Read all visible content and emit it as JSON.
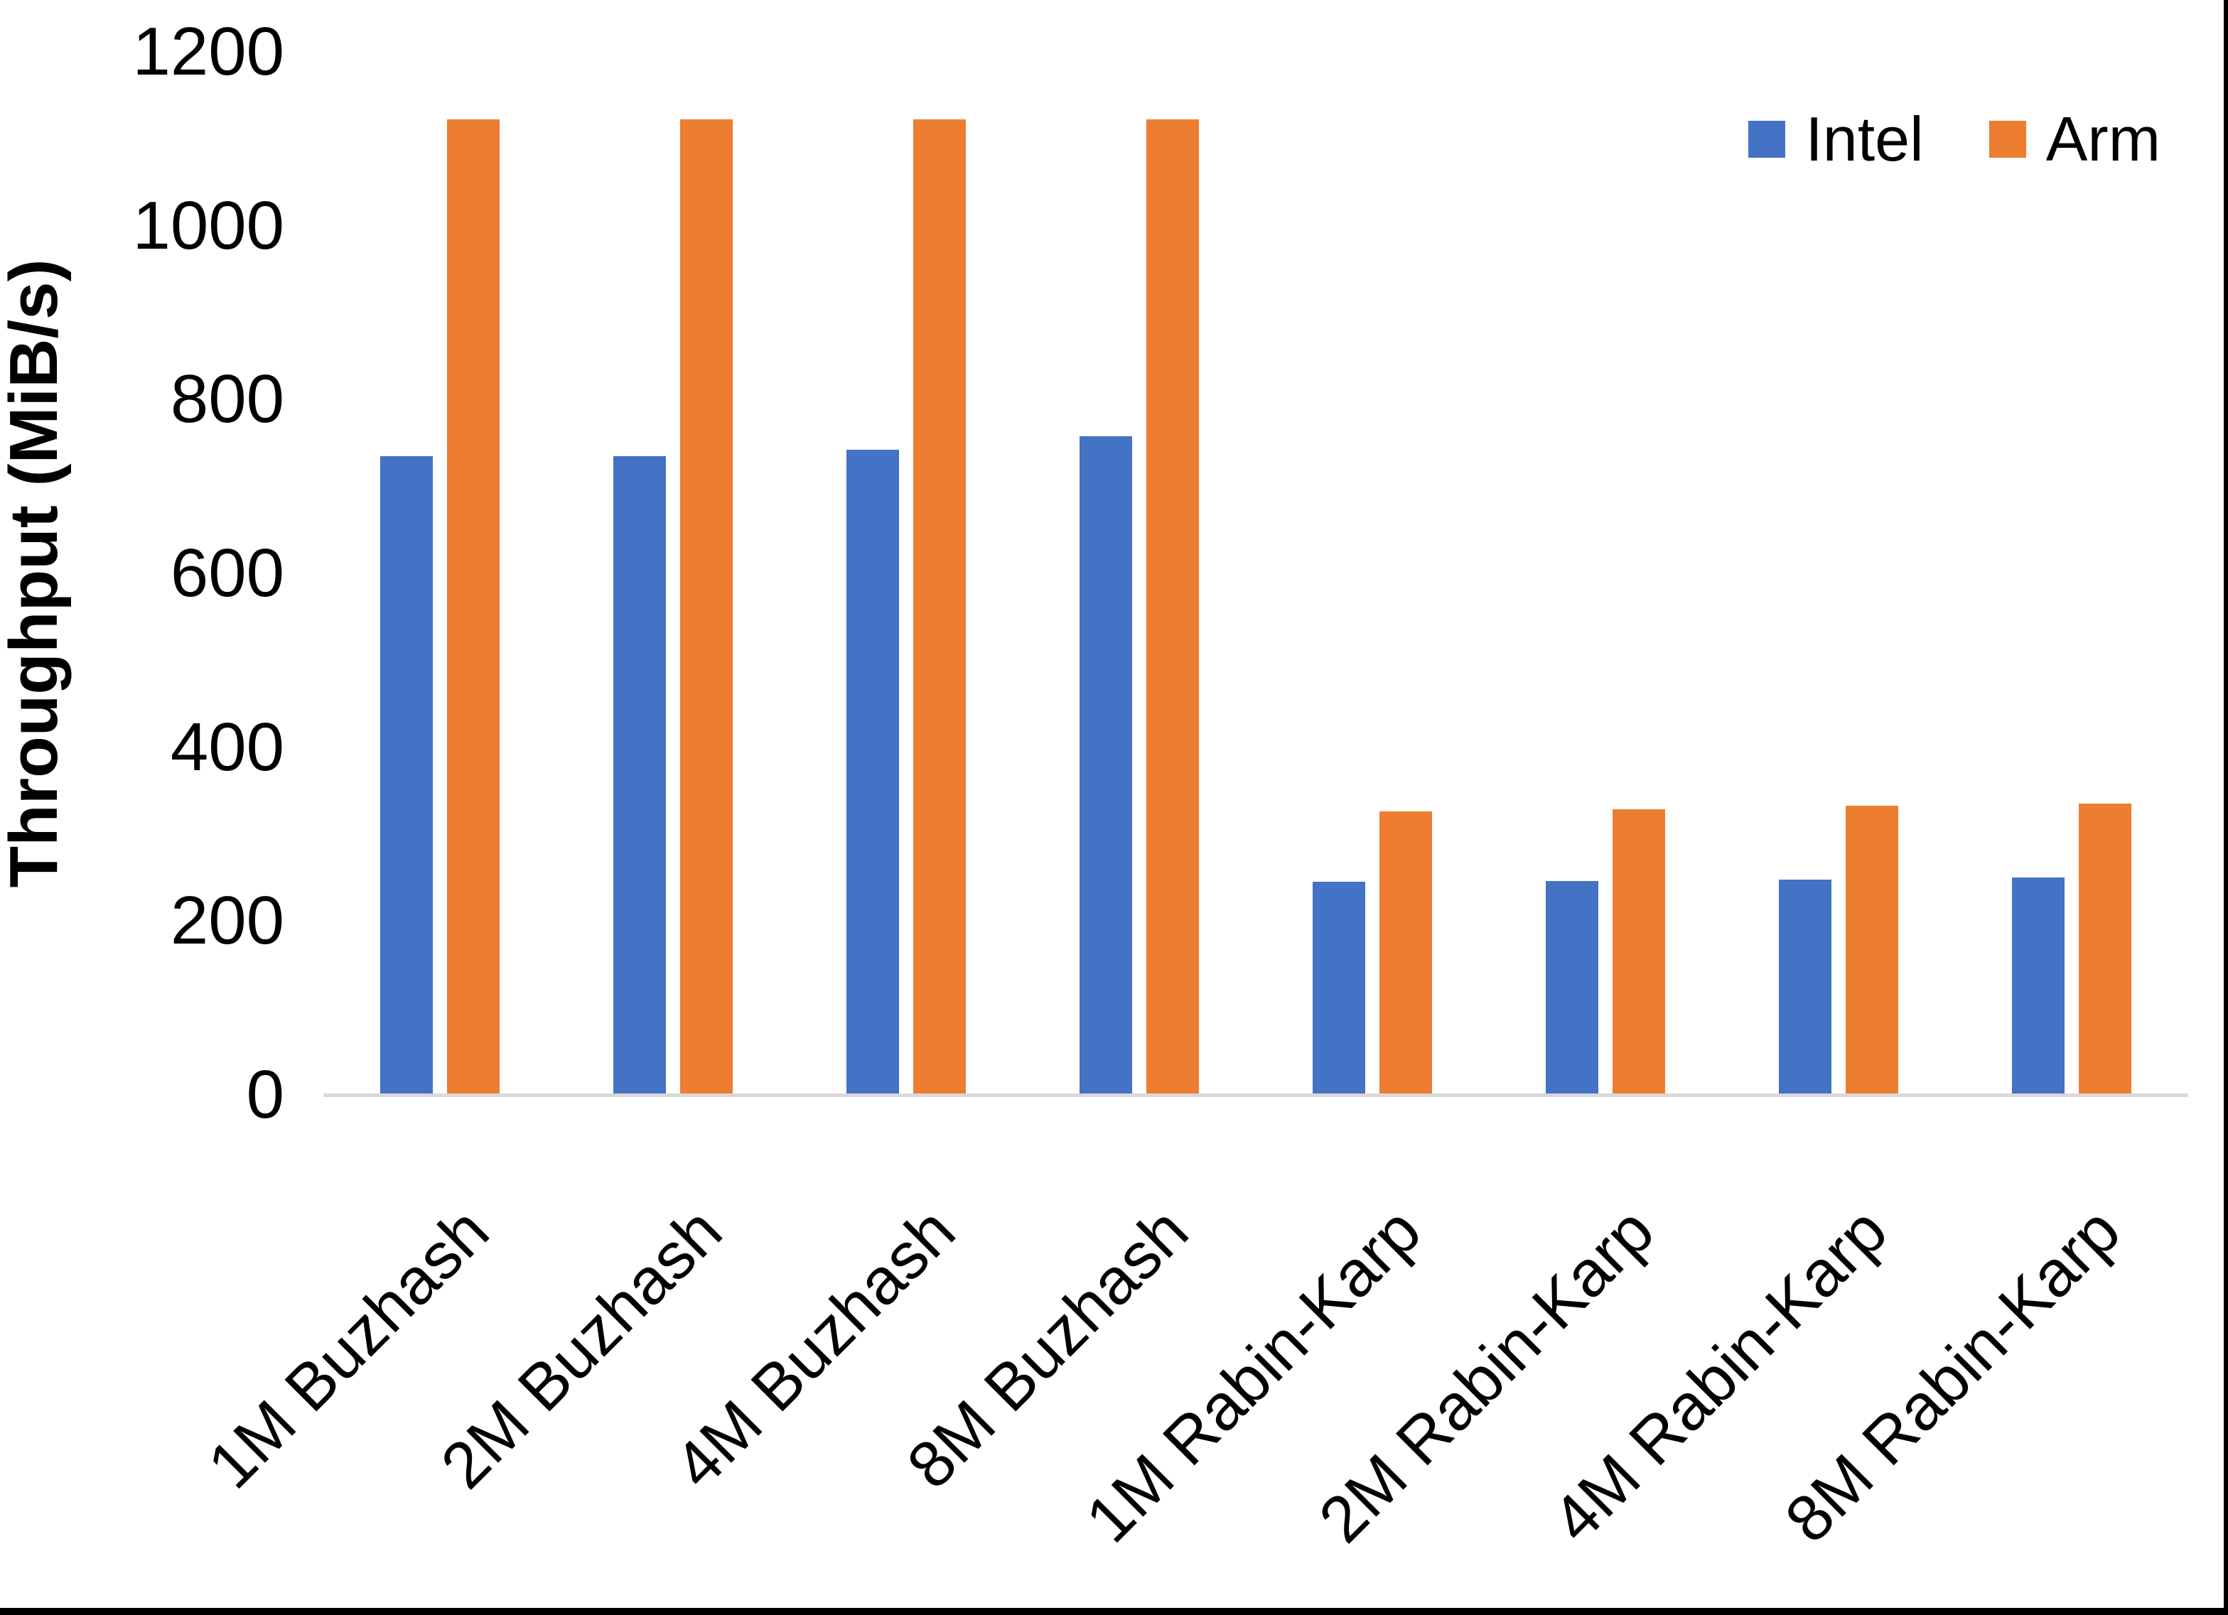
{
  "chart_data": {
    "type": "bar",
    "title": "",
    "xlabel": "",
    "ylabel": "Throughput (MiB/s)",
    "ylim": [
      0,
      1200
    ],
    "yticks": [
      0,
      200,
      400,
      600,
      800,
      1000,
      1200
    ],
    "grid": false,
    "legend_position": "top-right",
    "categories": [
      "1M Buzhash",
      "2M Buzhash",
      "4M Buzhash",
      "8M Buzhash",
      "1M Rabin-Karp",
      "2M Rabin-Karp",
      "4M Rabin-Karp",
      "8M Rabin-Karp"
    ],
    "series": [
      {
        "name": "Intel",
        "color": "#4472C4",
        "values": [
          735,
          735,
          742,
          758,
          245,
          246,
          248,
          250
        ]
      },
      {
        "name": "Arm",
        "color": "#ED7D31",
        "values": [
          1122,
          1122,
          1122,
          1122,
          326,
          329,
          333,
          335
        ]
      }
    ],
    "axis_line_color": "#D9D9D9",
    "border_color": "#000000"
  }
}
